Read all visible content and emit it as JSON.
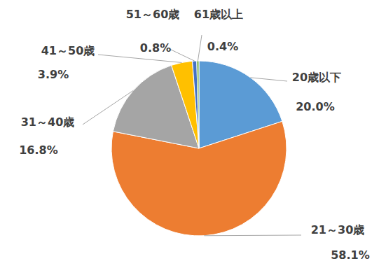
{
  "chart_data": {
    "type": "pie",
    "categories": [
      "20歳以下",
      "21～30歳",
      "31～40歳",
      "41～50歳",
      "51～60歳",
      "61歳以上"
    ],
    "values": [
      20.0,
      58.1,
      16.8,
      3.9,
      0.8,
      0.4
    ],
    "value_labels": [
      "20.0%",
      "58.1%",
      "16.8%",
      "3.9%",
      "0.8%",
      "0.4%"
    ],
    "colors": [
      "#5B9BD5",
      "#ED7D31",
      "#A5A5A5",
      "#FFC000",
      "#4472C4",
      "#70AD47"
    ],
    "data_labels": true
  }
}
